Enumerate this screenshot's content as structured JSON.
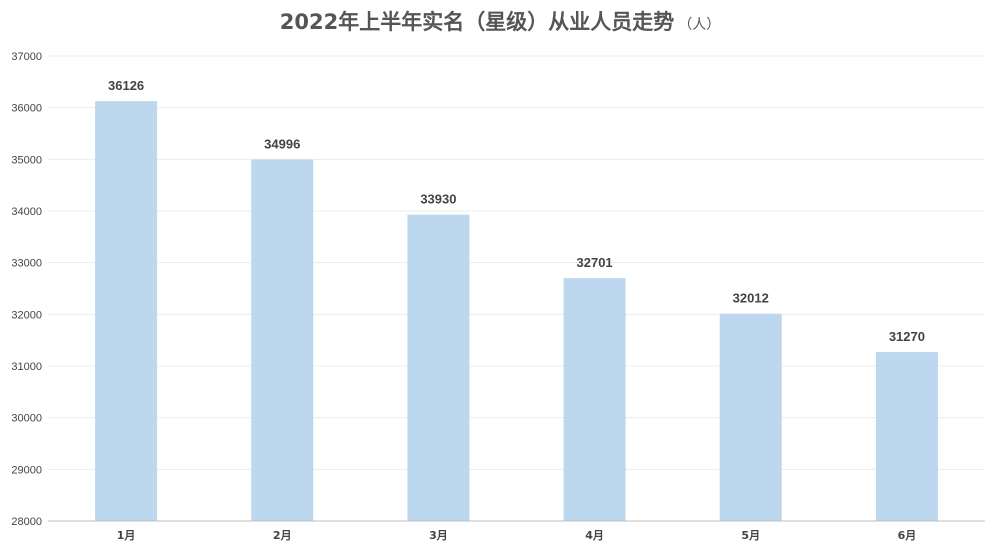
{
  "chart_data": {
    "type": "bar",
    "title": "2022年上半年实名（星级）从业人员走势",
    "unit": "（人）",
    "categories": [
      "1月",
      "2月",
      "3月",
      "4月",
      "5月",
      "6月"
    ],
    "values": [
      36126,
      34996,
      33930,
      32701,
      32012,
      31270
    ],
    "data_labels": [
      "36126",
      "34996",
      "33930",
      "32701",
      "32012",
      "31270"
    ],
    "ylim": [
      28000,
      37000
    ],
    "yticks": [
      28000,
      29000,
      30000,
      31000,
      32000,
      33000,
      34000,
      35000,
      36000,
      37000
    ],
    "ytick_labels": [
      "28000",
      "29000",
      "30000",
      "31000",
      "32000",
      "33000",
      "34000",
      "35000",
      "36000",
      "37000"
    ],
    "xlabel": "",
    "ylabel": "",
    "grid": true,
    "legend": "none",
    "bar_color": "#bdd7ee",
    "grid_color": "#ececec",
    "axis_color": "#bfbfbf",
    "text_color": "#444444"
  }
}
